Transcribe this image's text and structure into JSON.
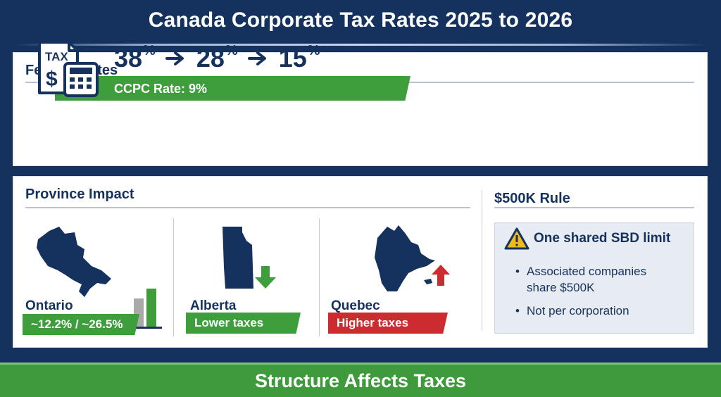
{
  "header": {
    "title": "Canada Corporate Tax Rates 2025 to 2026"
  },
  "federal": {
    "heading": "Federal Rates",
    "icon": "tax-calculator-icon",
    "rates": [
      {
        "value": "38",
        "unit": "%"
      },
      {
        "value": "28",
        "unit": "%"
      },
      {
        "value": "15",
        "unit": "%"
      }
    ],
    "ccpc": "CCPC Rate: 9%"
  },
  "province": {
    "heading": "Province Impact",
    "items": [
      {
        "name": "Ontario",
        "tag": "~12.2% / ~26.5%",
        "tag_color": "#3e9e3c",
        "icon": "bar-chart-icon"
      },
      {
        "name": "Alberta",
        "tag": "Lower taxes",
        "tag_color": "#3e9e3c",
        "icon": "arrow-down-icon"
      },
      {
        "name": "Quebec",
        "tag": "Higher taxes",
        "tag_color": "#cc2b2f",
        "icon": "arrow-up-icon"
      }
    ]
  },
  "rule": {
    "heading": "$500K Rule",
    "warning": "One shared SBD limit",
    "bullets": [
      {
        "line1": "Associated companies",
        "line2": "share $500K"
      },
      {
        "line1": "Not per corporation",
        "line2": ""
      }
    ]
  },
  "footer": {
    "text": "Structure Affects Taxes"
  },
  "colors": {
    "navy": "#15325f",
    "green": "#3e9e3c",
    "red": "#cc2b2f",
    "warning": "#f2b824"
  }
}
